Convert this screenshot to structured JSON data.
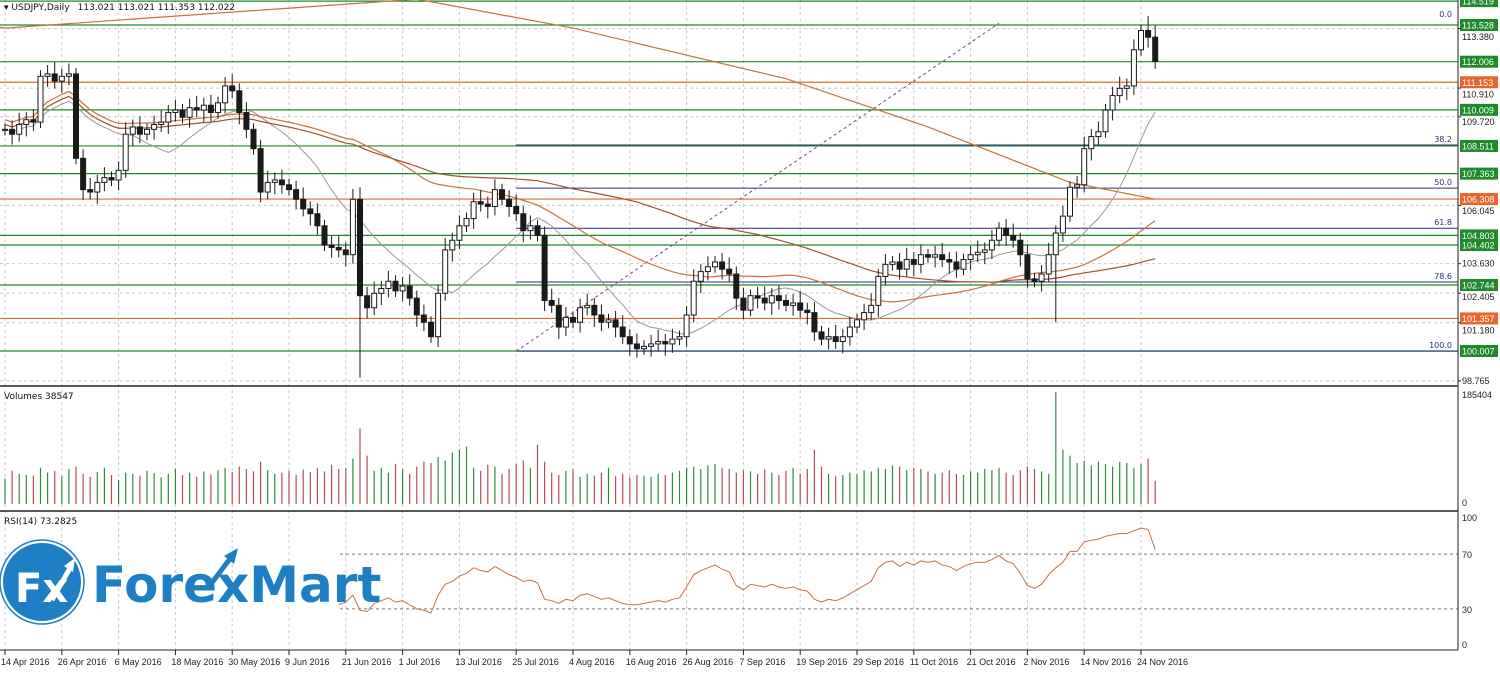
{
  "header": {
    "symbol_label": "USDJPY,Daily",
    "ohlc_label": "113.021 113.021 111.353 112.022",
    "volumes_label": "Volumes 38547",
    "rsi_label": "RSI(14) 73.2825"
  },
  "logo": {
    "mark": "Fx",
    "text": "ForexMart"
  },
  "colors": {
    "bull": "#1a1a1a",
    "bear": "#1a1a1a",
    "level_green": "#1f8a2a",
    "level_orange": "#e8652a",
    "fib": "#2f2f7a",
    "ma_fast": "#9a9a9a",
    "ma_mid": "#c8733a",
    "ma_slow": "#a0522d",
    "vol_up": "#2e8b3a",
    "vol_down": "#b8485a",
    "rsi_line": "#c8733a",
    "trend": "#8a3a8a"
  },
  "chart_data": [
    {
      "type": "candlestick",
      "title": "USDJPY,Daily",
      "ylim": [
        98.2,
        114.6
      ],
      "y_tick_labels": [
        "113.380",
        "110.910",
        "109.720",
        "106.045",
        "103.630",
        "102.405",
        "101.180",
        "98.765"
      ],
      "x_tick_labels": [
        "14 Apr 2016",
        "26 Apr 2016",
        "6 May 2016",
        "18 May 2016",
        "30 May 2016",
        "9 Jun 2016",
        "21 Jun 2016",
        "1 Jul 2016",
        "13 Jul 2016",
        "25 Jul 2016",
        "4 Aug 2016",
        "16 Aug 2016",
        "26 Aug 2016",
        "7 Sep 2016",
        "19 Sep 2016",
        "29 Sep 2016",
        "11 Oct 2016",
        "21 Oct 2016",
        "2 Nov 2016",
        "14 Nov 2016",
        "24 Nov 2016"
      ],
      "x_tick_every_bars": 8,
      "closes": [
        109.2,
        109.0,
        109.4,
        109.6,
        109.5,
        111.4,
        111.5,
        111.2,
        111.4,
        111.5,
        108.0,
        106.7,
        106.6,
        107.0,
        107.2,
        107.1,
        107.5,
        109.0,
        109.3,
        109.0,
        109.2,
        109.4,
        109.5,
        109.9,
        110.0,
        109.7,
        110.1,
        110.0,
        110.2,
        109.9,
        110.3,
        111.0,
        110.8,
        109.9,
        109.2,
        108.4,
        106.6,
        107.0,
        107.1,
        106.9,
        106.7,
        106.3,
        105.9,
        105.7,
        105.2,
        104.4,
        104.3,
        104.2,
        104.0,
        106.3,
        102.3,
        101.8,
        102.4,
        102.6,
        102.9,
        102.5,
        102.7,
        102.2,
        101.5,
        101.2,
        100.6,
        102.4,
        104.2,
        104.6,
        105.2,
        105.5,
        106.2,
        106.1,
        106.0,
        106.7,
        106.3,
        106.0,
        105.7,
        105.0,
        105.2,
        104.8,
        102.1,
        101.9,
        101.0,
        101.4,
        101.2,
        101.8,
        101.9,
        101.5,
        101.2,
        101.3,
        101.0,
        100.6,
        100.3,
        100.1,
        100.2,
        100.3,
        100.4,
        100.3,
        100.5,
        100.6,
        101.5,
        102.9,
        103.3,
        103.5,
        103.7,
        103.4,
        103.2,
        102.2,
        101.7,
        102.3,
        102.2,
        102.0,
        102.3,
        102.1,
        101.9,
        102.0,
        101.7,
        101.6,
        100.8,
        100.5,
        100.6,
        100.4,
        100.6,
        101.0,
        101.3,
        101.6,
        101.9,
        103.1,
        103.6,
        103.7,
        103.4,
        103.8,
        103.6,
        104.0,
        103.9,
        104.0,
        103.8,
        103.7,
        103.4,
        103.8,
        104.0,
        104.1,
        104.2,
        104.6,
        105.1,
        104.8,
        104.6,
        104.0,
        103.0,
        102.9,
        103.2,
        104.0,
        104.9,
        105.6,
        106.8,
        106.9,
        108.4,
        108.9,
        109.1,
        110.0,
        110.6,
        110.9,
        111.0,
        112.5,
        113.3,
        113.021,
        112.022
      ],
      "wick_overrides": {
        "50": {
          "low": 98.9,
          "high": 106.8
        },
        "148": {
          "low": 101.2
        },
        "161": {
          "high": 113.9
        }
      },
      "levels": [
        {
          "value": 114.519,
          "label": "114.519",
          "kind": "green"
        },
        {
          "value": 113.528,
          "label": "113.528",
          "kind": "green"
        },
        {
          "value": 112.006,
          "label": "112.006",
          "kind": "green"
        },
        {
          "value": 111.153,
          "label": "111.153",
          "kind": "orange"
        },
        {
          "value": 110.009,
          "label": "110.009",
          "kind": "green"
        },
        {
          "value": 108.511,
          "label": "108.511",
          "kind": "green"
        },
        {
          "value": 107.363,
          "label": "107.363",
          "kind": "green"
        },
        {
          "value": 106.308,
          "label": "106.308",
          "kind": "orange"
        },
        {
          "value": 104.803,
          "label": "104.803",
          "kind": "green"
        },
        {
          "value": 104.402,
          "label": "104.402",
          "kind": "green"
        },
        {
          "value": 102.744,
          "label": "102.744",
          "kind": "green"
        },
        {
          "value": 101.357,
          "label": "101.357",
          "kind": "orange"
        },
        {
          "value": 100.007,
          "label": "100.007",
          "kind": "green"
        }
      ],
      "fibonacci": {
        "start_bar": 72,
        "levels": [
          {
            "label": "0.0",
            "value": 113.73
          },
          {
            "label": "38.2",
            "value": 108.55
          },
          {
            "label": "50.0",
            "value": 106.76
          },
          {
            "label": "61.8",
            "value": 105.1
          },
          {
            "label": "78.6",
            "value": 102.87
          },
          {
            "label": "100.0",
            "value": 100.0
          }
        ]
      },
      "trendline": {
        "from": [
          72,
          100.0
        ],
        "to": [
          140,
          113.6
        ]
      },
      "long_ma_anchors": [
        [
          58,
          114.6
        ],
        [
          80,
          113.4
        ],
        [
          110,
          111.3
        ],
        [
          130,
          109.3
        ],
        [
          150,
          107.0
        ],
        [
          162,
          106.3
        ]
      ]
    },
    {
      "type": "bar",
      "title": "Volumes 38547",
      "ylim": [
        0,
        185404
      ],
      "y_tick_labels": [
        "185404",
        "0"
      ],
      "values": [
        42000,
        55000,
        50000,
        48000,
        47000,
        60000,
        52000,
        55000,
        46000,
        58000,
        62000,
        50000,
        45000,
        53000,
        60000,
        48000,
        40000,
        52000,
        50000,
        47000,
        55000,
        51000,
        44000,
        50000,
        58000,
        48000,
        52000,
        45000,
        54000,
        49000,
        56000,
        60000,
        53000,
        62000,
        58000,
        54000,
        70000,
        56000,
        50000,
        52000,
        55000,
        48000,
        57000,
        53000,
        60000,
        54000,
        65000,
        58000,
        60000,
        75000,
        125000,
        80000,
        55000,
        60000,
        52000,
        66000,
        58000,
        50000,
        62000,
        70000,
        68000,
        78000,
        72000,
        85000,
        90000,
        95000,
        60000,
        55000,
        65000,
        62000,
        50000,
        58000,
        66000,
        72000,
        60000,
        98000,
        70000,
        52000,
        48000,
        55000,
        58000,
        45000,
        50000,
        47000,
        52000,
        60000,
        46000,
        50000,
        44000,
        48000,
        47000,
        45000,
        50000,
        48000,
        52000,
        55000,
        60000,
        62000,
        58000,
        64000,
        66000,
        60000,
        58000,
        52000,
        56000,
        54000,
        50000,
        57000,
        52000,
        48000,
        55000,
        60000,
        50000,
        58000,
        90000,
        62000,
        50000,
        46000,
        48000,
        52000,
        50000,
        56000,
        54000,
        60000,
        58000,
        64000,
        62000,
        56000,
        60000,
        58000,
        54000,
        50000,
        52000,
        56000,
        50000,
        48000,
        54000,
        52000,
        58000,
        56000,
        60000,
        52000,
        48000,
        56000,
        62000,
        58000,
        54000,
        50000,
        185404,
        90000,
        80000,
        68000,
        72000,
        64000,
        70000,
        66000,
        62000,
        70000,
        68000,
        60000,
        66000,
        75000,
        38547
      ]
    },
    {
      "type": "line",
      "title": "RSI(14) 73.2825",
      "ylim": [
        0,
        100
      ],
      "y_tick_labels": [
        "100",
        "70",
        "30",
        "0"
      ],
      "levels": [
        70,
        30
      ],
      "start_bar": 47,
      "values": [
        33,
        35,
        40,
        29,
        28,
        34,
        36,
        38,
        35,
        36,
        33,
        30,
        29,
        27,
        40,
        48,
        50,
        54,
        56,
        60,
        58,
        57,
        61,
        58,
        55,
        53,
        50,
        51,
        49,
        37,
        36,
        34,
        37,
        36,
        40,
        41,
        39,
        37,
        38,
        36,
        34,
        33,
        33,
        34,
        35,
        36,
        35,
        37,
        38,
        46,
        55,
        58,
        60,
        62,
        59,
        57,
        47,
        44,
        48,
        47,
        46,
        48,
        46,
        45,
        46,
        44,
        43,
        37,
        35,
        37,
        36,
        38,
        41,
        44,
        47,
        50,
        60,
        64,
        65,
        61,
        64,
        62,
        65,
        64,
        65,
        62,
        61,
        58,
        61,
        63,
        64,
        64,
        66,
        69,
        65,
        63,
        56,
        47,
        45,
        48,
        55,
        60,
        64,
        72,
        72,
        79,
        80,
        81,
        83,
        84,
        85,
        85,
        87,
        89,
        88,
        73.28
      ]
    }
  ]
}
